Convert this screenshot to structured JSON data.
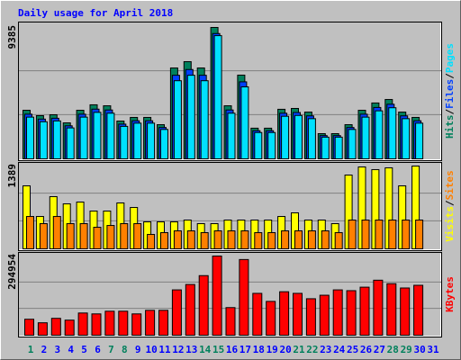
{
  "chart_data": [
    {
      "type": "bar",
      "title": "Daily usage for April 2018",
      "ylim": [
        0,
        9385
      ],
      "yticks": [
        9385
      ],
      "legend_separator": "/",
      "series": [
        {
          "name": "Hits",
          "color": "#00805c",
          "values": [
            3470,
            3085,
            3150,
            2570,
            3470,
            3860,
            3790,
            2700,
            2960,
            2960,
            2440,
            6490,
            6940,
            6490,
            9385,
            3790,
            5980,
            2190,
            2190,
            3540,
            3600,
            3340,
            1800,
            1800,
            2440,
            3470,
            3990,
            4240,
            3340,
            2960,
            0
          ]
        },
        {
          "name": "Files",
          "color": "#0040ff",
          "values": [
            3190,
            2840,
            2900,
            2360,
            3190,
            3550,
            3490,
            2480,
            2720,
            2720,
            2240,
            5970,
            6380,
            5970,
            8950,
            3490,
            5500,
            2010,
            2010,
            3260,
            3310,
            3070,
            1660,
            1660,
            2240,
            3190,
            3670,
            3900,
            3070,
            2720,
            0
          ]
        },
        {
          "name": "Pages",
          "color": "#00e0ff",
          "values": [
            2980,
            2650,
            2710,
            2210,
            2980,
            3320,
            3260,
            2320,
            2550,
            2550,
            2100,
            5580,
            5970,
            5580,
            8800,
            3260,
            5140,
            1880,
            1880,
            3040,
            3100,
            2870,
            1550,
            1550,
            2100,
            2980,
            3430,
            3650,
            2870,
            2550,
            0
          ]
        }
      ]
    },
    {
      "type": "bar",
      "ylim": [
        0,
        1389
      ],
      "yticks": [
        1389
      ],
      "legend_separator": "/",
      "series": [
        {
          "name": "Visits",
          "color": "#ffff00",
          "values": [
            1057,
            543,
            876,
            755,
            785,
            634,
            634,
            770,
            694,
            453,
            453,
            453,
            483,
            423,
            423,
            483,
            483,
            483,
            483,
            543,
            604,
            483,
            483,
            423,
            1238,
            1374,
            1329,
            1359,
            1057,
            1389,
            0
          ]
        },
        {
          "name": "Sites",
          "color": "#ff8000",
          "values": [
            543,
            423,
            543,
            423,
            423,
            362,
            392,
            423,
            423,
            242,
            272,
            302,
            302,
            272,
            302,
            302,
            302,
            272,
            272,
            302,
            302,
            302,
            302,
            272,
            483,
            483,
            483,
            483,
            483,
            483,
            0
          ]
        }
      ]
    },
    {
      "type": "bar",
      "ylim": [
        0,
        294954
      ],
      "yticks": [
        294954
      ],
      "categories": [
        "1",
        "2",
        "3",
        "4",
        "5",
        "6",
        "7",
        "8",
        "9",
        "10",
        "11",
        "12",
        "13",
        "14",
        "15",
        "16",
        "17",
        "18",
        "19",
        "20",
        "21",
        "22",
        "23",
        "24",
        "25",
        "26",
        "27",
        "28",
        "29",
        "30",
        "31"
      ],
      "category_colors": [
        "#00805c",
        "#0000ff",
        "#0000ff",
        "#0000ff",
        "#0000ff",
        "#0000ff",
        "#00805c",
        "#00805c",
        "#0000ff",
        "#0000ff",
        "#0000ff",
        "#0000ff",
        "#0000ff",
        "#00805c",
        "#00805c",
        "#0000ff",
        "#0000ff",
        "#0000ff",
        "#0000ff",
        "#0000ff",
        "#00805c",
        "#00805c",
        "#0000ff",
        "#0000ff",
        "#0000ff",
        "#0000ff",
        "#0000ff",
        "#00805c",
        "#00805c",
        "#0000ff",
        "#0000ff"
      ],
      "series": [
        {
          "name": "KBytes",
          "color": "#ff0000",
          "values": [
            59600,
            46400,
            63000,
            56300,
            82800,
            79500,
            89500,
            89500,
            79500,
            92800,
            92800,
            169000,
            189000,
            222000,
            294954,
            103000,
            282000,
            156000,
            126000,
            162000,
            156000,
            136000,
            149000,
            169000,
            166000,
            179000,
            205000,
            192000,
            176000,
            186000,
            0
          ]
        }
      ]
    }
  ]
}
